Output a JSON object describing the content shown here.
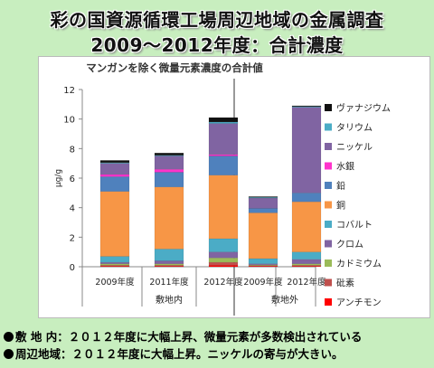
{
  "title_line1": "彩の国資源循環工場周辺地域の金属調査",
  "title_line2": "2009～2012年度：合計濃度",
  "footer": {
    "line1": "敷 地 内：２０１２年度に大幅上昇、微量元素が多数検出されている",
    "line2": "周辺地域：２０１２年度に大幅上昇。ニッケルの寄与が大きい。"
  },
  "chart_data": {
    "type": "bar",
    "stacked": true,
    "title": "マンガンを除く微量元素濃度の合計値",
    "ylabel": "μg/g",
    "ylim": [
      0,
      12
    ],
    "yticks": [
      0,
      2,
      4,
      6,
      8,
      10,
      12
    ],
    "grid": false,
    "legend_position": "right",
    "groups": [
      {
        "label": "敷地内",
        "categories": [
          "2009年度",
          "2011年度",
          "2012年度"
        ]
      },
      {
        "label": "敷地外",
        "categories": [
          "2009年度",
          "2012年度"
        ]
      }
    ],
    "categories": [
      "2009年度",
      "2011年度",
      "2012年度",
      "2009年度",
      "2012年度"
    ],
    "series": [
      {
        "name": "アンチモン",
        "color": "#ff0000",
        "values": [
          0.05,
          0.05,
          0.1,
          0.05,
          0.05
        ]
      },
      {
        "name": "砒素",
        "color": "#c0504d",
        "values": [
          0.05,
          0.05,
          0.2,
          0.03,
          0.05
        ]
      },
      {
        "name": "カドミウム",
        "color": "#9bbb59",
        "values": [
          0.1,
          0.1,
          0.3,
          0.05,
          0.1
        ]
      },
      {
        "name": "クロム",
        "color": "#8064a2",
        "values": [
          0.1,
          0.2,
          0.4,
          0.07,
          0.3
        ]
      },
      {
        "name": "コバルト",
        "color": "#4bacc6",
        "values": [
          0.4,
          0.8,
          0.9,
          0.35,
          0.5
        ]
      },
      {
        "name": "銅",
        "color": "#f79646",
        "values": [
          4.4,
          4.2,
          4.3,
          3.1,
          3.4
        ]
      },
      {
        "name": "鉛",
        "color": "#4f81bd",
        "values": [
          1.0,
          1.0,
          1.3,
          0.3,
          0.6
        ]
      },
      {
        "name": "水銀",
        "color": "#ff33cc",
        "values": [
          0.15,
          0.2,
          0.1,
          0.0,
          0.0
        ]
      },
      {
        "name": "ニッケル",
        "color": "#8064a2",
        "values": [
          0.75,
          0.9,
          2.1,
          0.7,
          5.8
        ]
      },
      {
        "name": "タリウム",
        "color": "#4bacc6",
        "values": [
          0.05,
          0.05,
          0.1,
          0.05,
          0.05
        ]
      },
      {
        "name": "ヴァナジウム",
        "color": "#111111",
        "values": [
          0.15,
          0.15,
          0.3,
          0.05,
          0.05
        ]
      }
    ]
  }
}
